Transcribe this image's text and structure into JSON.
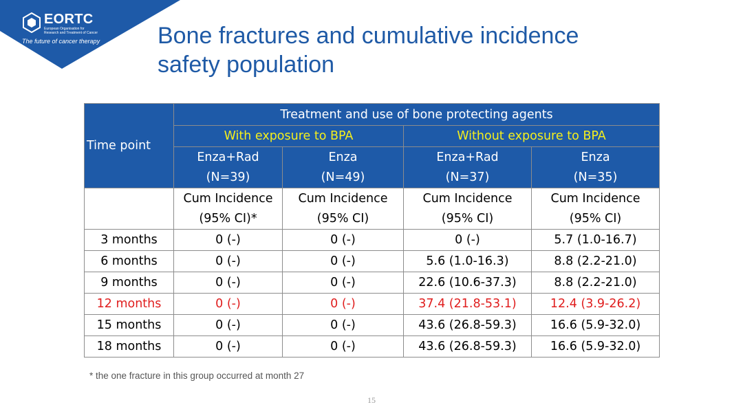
{
  "logo": {
    "name": "EORTC",
    "subtitle": "European Organisation for Research and Treatment of Cancer",
    "tagline": "The future of cancer therapy"
  },
  "colors": {
    "header_blue": "#1e5aa8",
    "title_blue": "#1f5aa6",
    "highlight_red": "#e01e1e",
    "group_yellow": "#f5ef1c"
  },
  "title_lines": [
    "Bone fractures and cumulative incidence",
    "safety population"
  ],
  "table": {
    "time_header": "Time point",
    "group_header": "Treatment and use of bone protecting agents",
    "with_bpa": "With exposure to BPA",
    "without_bpa": "Without exposure to BPA",
    "arms": [
      {
        "name": "Enza+Rad",
        "n": "(N=39)",
        "measure": "Cum Incidence",
        "ci": "(95% CI)*"
      },
      {
        "name": "Enza",
        "n": "(N=49)",
        "measure": "Cum Incidence",
        "ci": "(95% CI)"
      },
      {
        "name": "Enza+Rad",
        "n": "(N=37)",
        "measure": "Cum Incidence",
        "ci": "(95% CI)"
      },
      {
        "name": "Enza",
        "n": "(N=35)",
        "measure": "Cum Incidence",
        "ci": "(95% CI)"
      }
    ],
    "rows": [
      {
        "time": "3 months",
        "values": [
          "0 (-)",
          "0 (-)",
          "0 (-)",
          "5.7 (1.0-16.7)"
        ]
      },
      {
        "time": "6 months",
        "values": [
          "0 (-)",
          "0 (-)",
          "5.6 (1.0-16.3)",
          "8.8 (2.2-21.0)"
        ]
      },
      {
        "time": "9 months",
        "values": [
          "0 (-)",
          "0 (-)",
          "22.6 (10.6-37.3)",
          "8.8 (2.2-21.0)"
        ]
      },
      {
        "time": "12 months",
        "values": [
          "0 (-)",
          "0 (-)",
          "37.4 (21.8-53.1)",
          "12.4 (3.9-26.2)"
        ]
      },
      {
        "time": "15 months",
        "values": [
          "0 (-)",
          "0 (-)",
          "43.6 (26.8-59.3)",
          "16.6 (5.9-32.0)"
        ]
      },
      {
        "time": "18 months",
        "values": [
          "0 (-)",
          "0 (-)",
          "43.6 (26.8-59.3)",
          "16.6 (5.9-32.0)"
        ]
      }
    ]
  },
  "footnote": "* the one fracture in this group occurred at month 27",
  "page_number": "15"
}
